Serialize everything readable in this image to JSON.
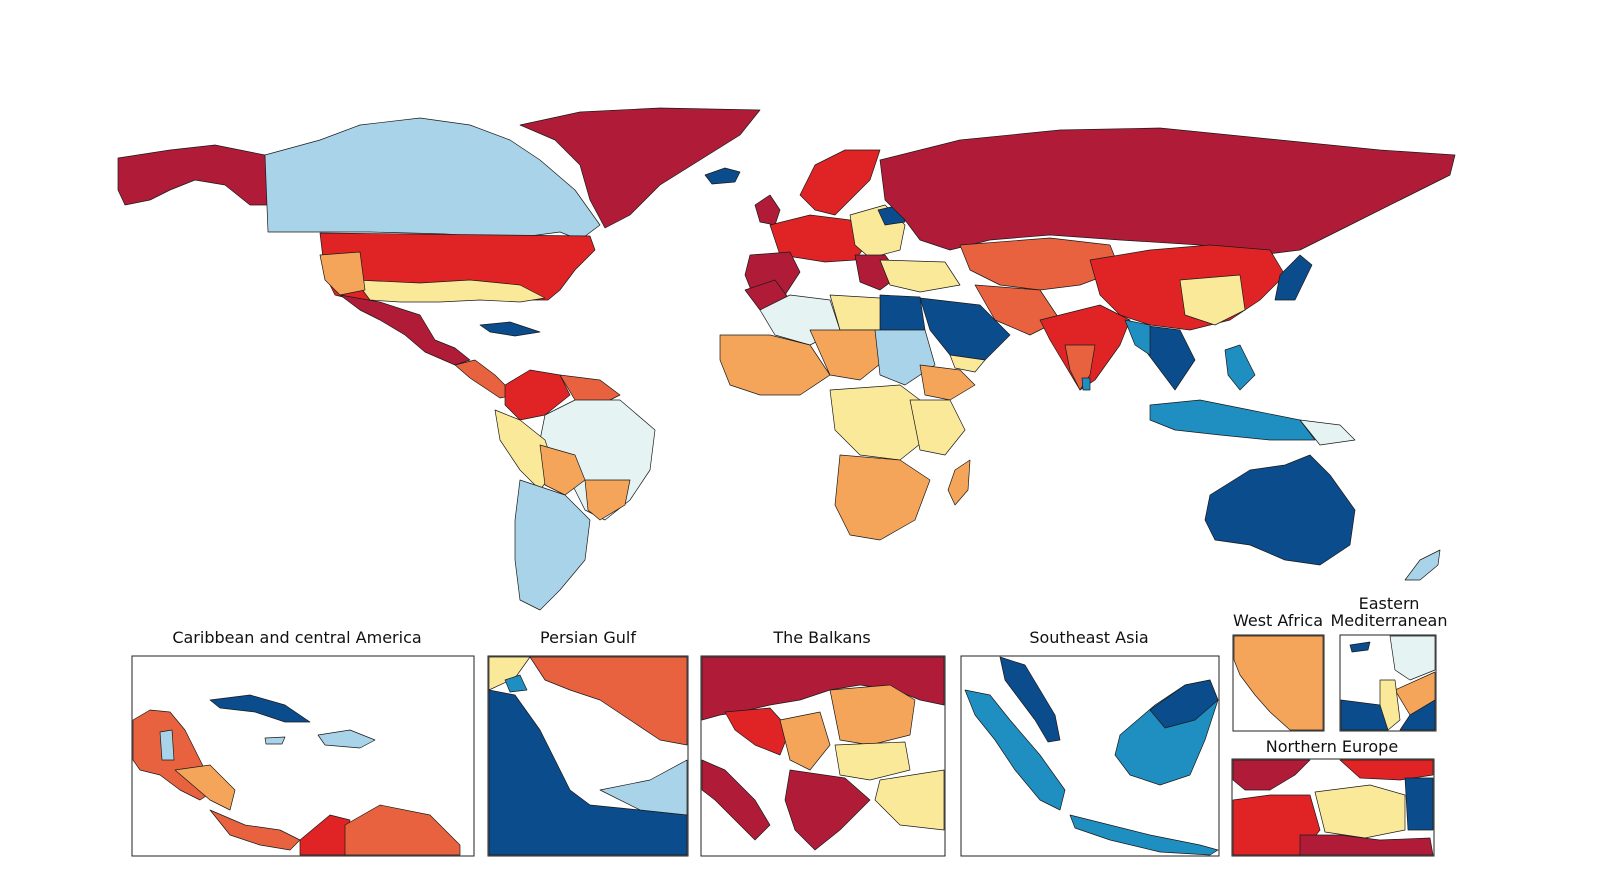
{
  "palette": {
    "c1": "#0b4c8c",
    "c2": "#1f8fc2",
    "c3": "#a9d3e8",
    "c4": "#e5f3f2",
    "c5": "#fbe99a",
    "c6": "#f5a55a",
    "c7": "#e8623f",
    "c8": "#e02426",
    "c9": "#b01c38"
  },
  "insets": {
    "caribbean": "Caribbean and central America",
    "persian_gulf": "Persian Gulf",
    "balkans": "The Balkans",
    "southeast_asia": "Southeast Asia",
    "west_africa": "West Africa",
    "eastern_med_line1": "Eastern",
    "eastern_med_line2": "Mediterranean",
    "northern_europe": "Northern Europe"
  }
}
